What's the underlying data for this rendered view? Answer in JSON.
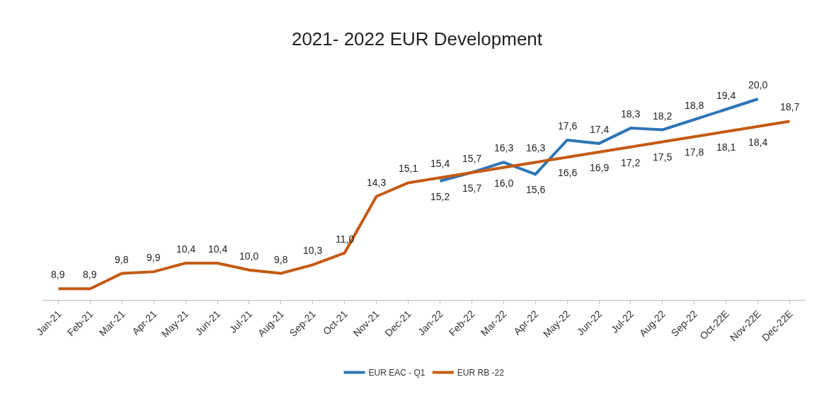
{
  "chart_data": {
    "type": "line",
    "title": "2021- 2022 EUR Development",
    "categories": [
      "Jan-21",
      "Feb-21",
      "Mar-21",
      "Apr-21",
      "May-21",
      "Jun-21",
      "Jul-21",
      "Aug-21",
      "Sep-21",
      "Oct-21",
      "Nov-21",
      "Dec-21",
      "Jan-22",
      "Feb-22",
      "Mar-22",
      "Apr-22",
      "May-22",
      "Jun-22",
      "Jul-22",
      "Aug-22",
      "Sep-22",
      "Oct-22E",
      "Nov-22E",
      "Dec-22E"
    ],
    "series": [
      {
        "name": "EUR EAC - Q1",
        "color": "#2e75b6",
        "values": [
          null,
          null,
          null,
          null,
          null,
          null,
          null,
          null,
          null,
          null,
          null,
          null,
          15.2,
          15.7,
          16.3,
          15.6,
          17.6,
          17.4,
          18.3,
          18.2,
          18.8,
          19.4,
          20.0,
          null
        ],
        "value_labels": [
          null,
          null,
          null,
          null,
          null,
          null,
          null,
          null,
          null,
          null,
          null,
          null,
          "15,2",
          "15,7",
          "16,3",
          "15,6",
          "17,6",
          "17,4",
          "18,3",
          "18,2",
          "18,8",
          "19,4",
          "20,0",
          null
        ]
      },
      {
        "name": "EUR RB -22",
        "color": "#c55a11",
        "values": [
          8.9,
          8.9,
          9.8,
          9.9,
          10.4,
          10.4,
          10.0,
          9.8,
          10.3,
          11.0,
          14.3,
          15.1,
          15.4,
          15.7,
          16.0,
          16.3,
          16.6,
          16.9,
          17.2,
          17.5,
          17.8,
          18.1,
          18.4,
          18.7
        ],
        "value_labels": [
          "8,9",
          "8,9",
          "9,8",
          "9,9",
          "10,4",
          "10,4",
          "10,0",
          "9,8",
          "10,3",
          "11,0",
          "14,3",
          "15,1",
          "15,4",
          "15,7",
          "16,0",
          "16,3",
          "16,6",
          "16,9",
          "17,2",
          "17,5",
          "17,8",
          "18,1",
          "18,4",
          "18,7"
        ]
      }
    ],
    "legend": "bottom",
    "marker": "none",
    "line_style": "solid"
  }
}
